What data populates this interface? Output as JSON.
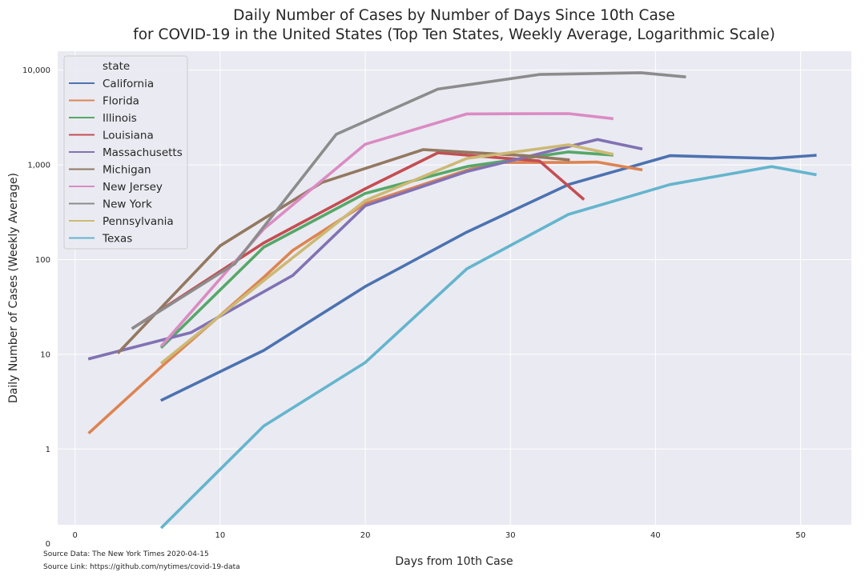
{
  "chart_data": {
    "type": "line",
    "title": "Daily Number of Cases by Number of Days Since 10th Case",
    "subtitle": "for COVID-19 in the United States (Top Ten States, Weekly Average, Logarithmic Scale)",
    "xlabel": "Days from 10th Case",
    "ylabel": "Daily Number of Cases (Weekly Average)",
    "xlim": [
      -1.2,
      53.5
    ],
    "x_ticks": [
      0,
      10,
      20,
      30,
      40,
      50
    ],
    "ylim_decades": [
      -0.8,
      4.2
    ],
    "y_scale": "log",
    "y_ticks": [
      {
        "value": 0,
        "label": "0"
      },
      {
        "value": 1,
        "label": "1"
      },
      {
        "value": 10,
        "label": "10"
      },
      {
        "value": 100,
        "label": "100"
      },
      {
        "value": 1000,
        "label": "1,000"
      },
      {
        "value": 10000,
        "label": "10,000"
      }
    ],
    "grid": true,
    "legend_title": "state",
    "legend_placement": "upper-left",
    "series": [
      {
        "name": "California",
        "color": "#4c72b0",
        "x": [
          6,
          13,
          20,
          27,
          34,
          41,
          48,
          51
        ],
        "y": [
          3.3,
          11,
          52,
          195,
          620,
          1250,
          1170,
          1260
        ]
      },
      {
        "name": "Florida",
        "color": "#dd8452",
        "x": [
          1,
          6,
          13,
          15,
          20,
          27,
          29,
          34,
          36,
          39
        ],
        "y": [
          1.5,
          7.5,
          65,
          125,
          390,
          880,
          1060,
          1060,
          1070,
          890
        ]
      },
      {
        "name": "Illinois",
        "color": "#55a868",
        "x": [
          6,
          13,
          20,
          27,
          34,
          37
        ],
        "y": [
          12,
          135,
          500,
          960,
          1370,
          1270
        ]
      },
      {
        "name": "Louisiana",
        "color": "#c44e52",
        "x": [
          4,
          6,
          13,
          20,
          25,
          32,
          35
        ],
        "y": [
          19,
          30,
          150,
          560,
          1340,
          1100,
          440
        ]
      },
      {
        "name": "Massachusetts",
        "color": "#8172b3",
        "x": [
          1,
          8,
          15,
          20,
          27,
          34,
          36,
          39
        ],
        "y": [
          9,
          17,
          68,
          370,
          850,
          1560,
          1850,
          1480
        ]
      },
      {
        "name": "Michigan",
        "color": "#937860",
        "x": [
          3,
          10,
          17,
          24,
          31,
          34
        ],
        "y": [
          10.5,
          140,
          650,
          1450,
          1250,
          1130
        ]
      },
      {
        "name": "New Jersey",
        "color": "#da8bc3",
        "x": [
          6,
          13,
          20,
          27,
          34,
          37
        ],
        "y": [
          12.5,
          210,
          1650,
          3450,
          3480,
          3080
        ]
      },
      {
        "name": "New York",
        "color": "#8c8c8c",
        "x": [
          4,
          11,
          18,
          25,
          32,
          39,
          42
        ],
        "y": [
          19,
          90,
          2100,
          6300,
          9000,
          9400,
          8500
        ]
      },
      {
        "name": "Pennsylvania",
        "color": "#ccb974",
        "x": [
          6,
          13,
          20,
          27,
          34,
          37
        ],
        "y": [
          8.2,
          60,
          420,
          1170,
          1630,
          1300
        ]
      },
      {
        "name": "Texas",
        "color": "#64b5cd",
        "x": [
          6,
          13,
          20,
          27,
          34,
          41,
          48,
          51
        ],
        "y": [
          0.15,
          1.75,
          8.2,
          80,
          300,
          620,
          960,
          790
        ]
      }
    ]
  },
  "footer": {
    "source_data": "Source Data: The New York Times 2020-04-15",
    "source_link": "Source Link: https://github.com/nytimes/covid-19-data"
  }
}
